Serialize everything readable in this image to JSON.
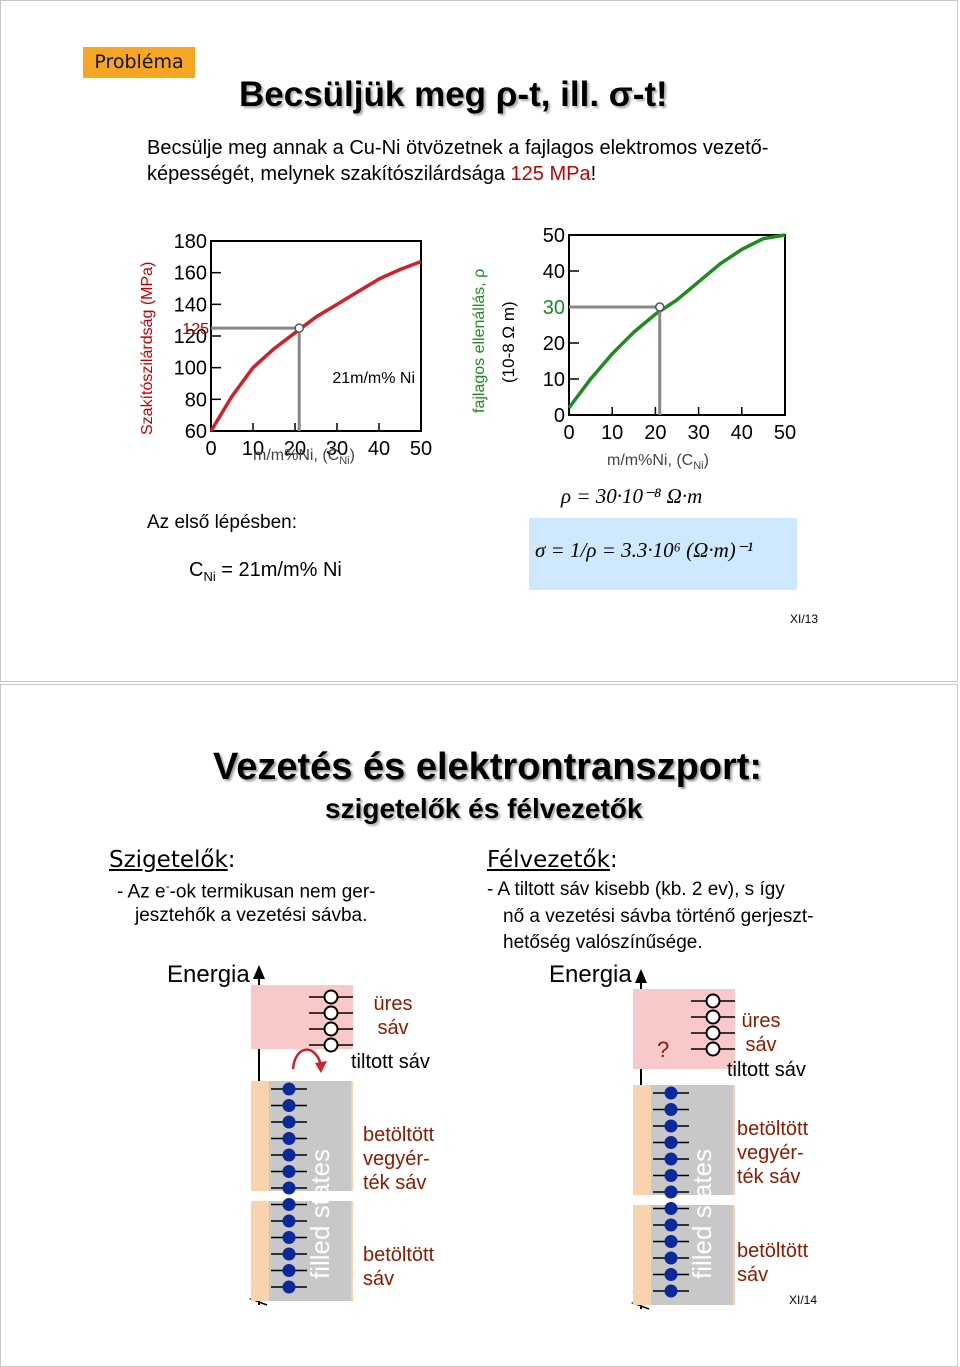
{
  "slide1": {
    "tag": "Probléma",
    "title": "Becsüljük meg ρ-t, ill. σ-t!",
    "question_line1": "Becsülje meg annak a Cu-Ni ötvözetnek a fajlagos elektromos vezető-",
    "question_line2_pre": "képességét, melynek szakítószilárdsága ",
    "question_line2_value": "125 MPa",
    "question_line2_post": "!",
    "chart_left": {
      "ylabel": "Szakítószilárdság (MPa)",
      "yticks": [
        "180",
        "160",
        "140",
        "120",
        "100",
        "80",
        "60"
      ],
      "xticks": [
        "0",
        "10",
        "20",
        "30",
        "40",
        "50"
      ],
      "xlabel_pre": "m/m%Ni, (C",
      "xlabel_sub": "Ni",
      "xlabel_post": ")",
      "marker_value": "125",
      "annotation": "21m/m% Ni"
    },
    "chart_right": {
      "ylabel_line1": "fajlagos ellenállás, ρ",
      "ylabel_line2": "(10-8 Ω m)",
      "yticks": [
        "50",
        "40",
        "30",
        "20",
        "10",
        "0"
      ],
      "xticks": [
        "0",
        "10",
        "20",
        "30",
        "40",
        "50"
      ],
      "xlabel_pre": "m/m%Ni, (C",
      "xlabel_sub": "Ni",
      "xlabel_post": ")"
    },
    "first_step": "Az első lépésben:",
    "cni_pre": "C",
    "cni_sub": "Ni",
    "cni_post": " = 21m/m% Ni",
    "formula_rho": "ρ = 30·10⁻⁸ Ω·m",
    "formula_sigma": "σ = 1/ρ = 3.3·10⁶ (Ω·m)⁻¹",
    "page": "XI/13"
  },
  "chart_data": [
    {
      "type": "line",
      "xlabel": "m/m%Ni, (CNi)",
      "ylabel": "Szakítószilárdság (MPa)",
      "xlim": [
        0,
        50
      ],
      "ylim": [
        60,
        180
      ],
      "x": [
        0,
        5,
        10,
        15,
        20,
        25,
        30,
        35,
        40,
        45,
        50
      ],
      "series": [
        {
          "values": [
            60,
            82,
            100,
            112,
            122,
            132,
            140,
            148,
            156,
            162,
            167
          ]
        }
      ],
      "color": "#d0202a",
      "lookup": {
        "x": 21,
        "y": 125
      }
    },
    {
      "type": "line",
      "xlabel": "m/m%Ni, (CNi)",
      "ylabel": "fajlagos ellenállás, ρ (10-8 Ω m)",
      "xlim": [
        0,
        50
      ],
      "ylim": [
        0,
        50
      ],
      "x": [
        0,
        5,
        10,
        15,
        20,
        25,
        30,
        35,
        40,
        45,
        50
      ],
      "series": [
        {
          "values": [
            2,
            10,
            17,
            23,
            28,
            32,
            37,
            42,
            46,
            49,
            50
          ]
        }
      ],
      "color": "#1e8c1e",
      "lookup": {
        "x": 21,
        "y": 30
      }
    }
  ],
  "slide2": {
    "title": "Vezetés és elektrontranszport:",
    "subtitle": "szigetelők és félvezetők",
    "left": {
      "heading": "Szigetelők",
      "heading_colon": ":",
      "line1_pre": "- Az e",
      "line1_sup": "-",
      "line1_post": "-ok termikusan nem ger-",
      "line2": "jesztehők a vezetési sávba.",
      "energy": "Energia",
      "empty_band": [
        "üres",
        "sáv"
      ],
      "gap": "tiltott sáv",
      "valence": [
        "betöltött",
        "vegyér-",
        "ték sáv"
      ],
      "filled": [
        "betöltött",
        "sáv"
      ],
      "filled_states": "filled states"
    },
    "right": {
      "heading": "Félvezetők",
      "heading_colon": ":",
      "line1": "- A tiltott sáv kisebb (kb. 2 ev), s így",
      "line2": "nő a vezetési sávba történő gerjeszt-",
      "line3": "hetőség valószínűsége.",
      "energy": "Energia",
      "question": "?",
      "empty_band": [
        "üres",
        "sáv"
      ],
      "gap": "tiltott sáv",
      "valence": [
        "betöltött",
        "vegyér-",
        "ték sáv"
      ],
      "filled": [
        "betöltött",
        "sáv"
      ],
      "filled_states": "filled states"
    },
    "page": "XI/14"
  }
}
